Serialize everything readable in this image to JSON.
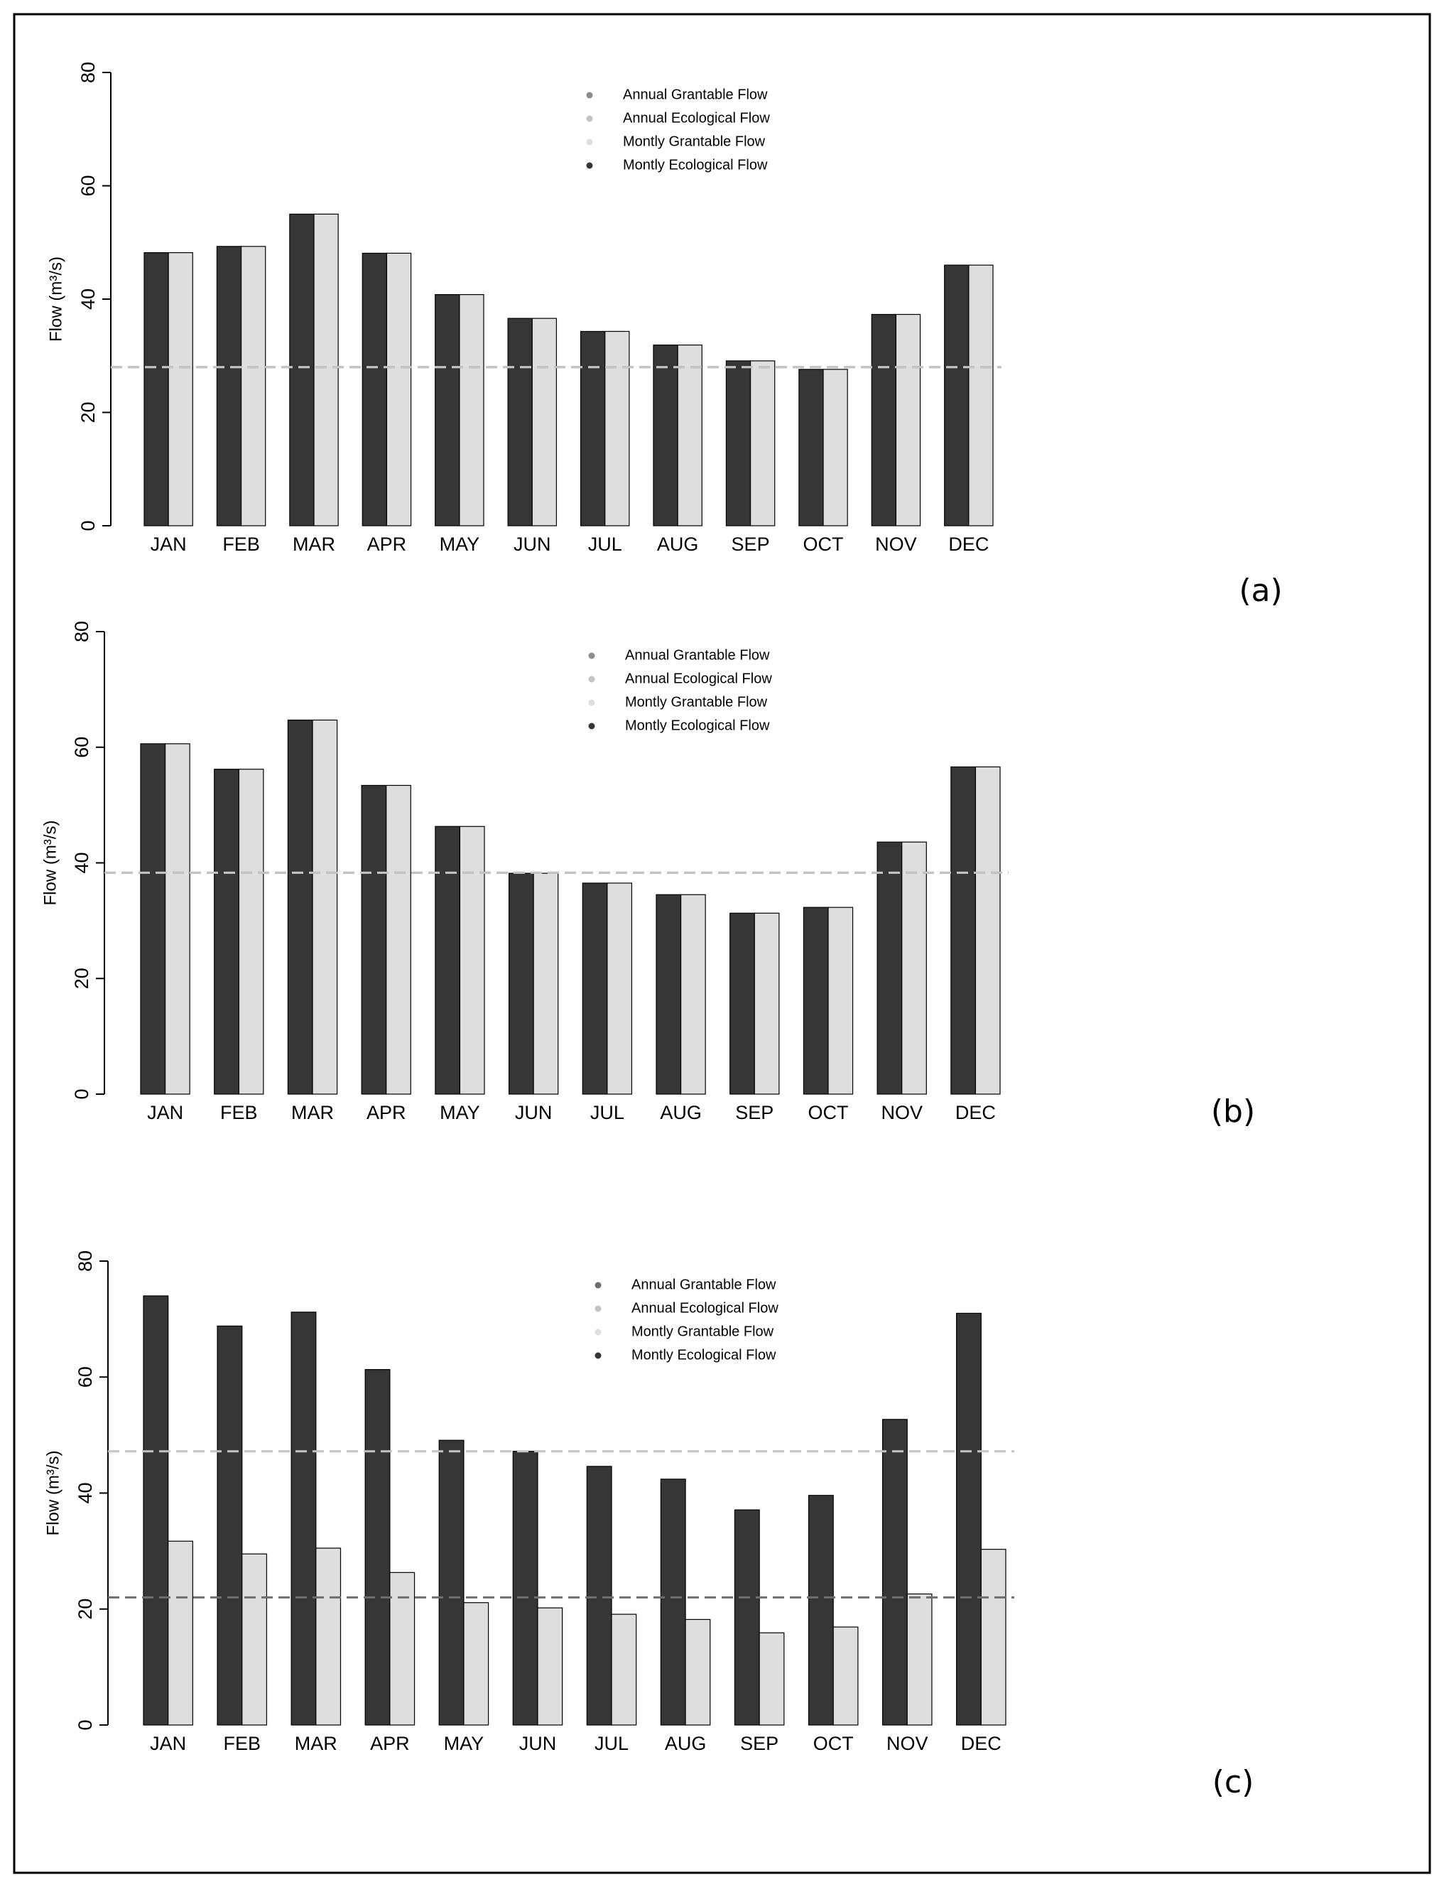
{
  "chart_data": [
    {
      "type": "bar",
      "label": "(a)",
      "y_label": "Flow (m³/s)",
      "categories": [
        "JAN",
        "FEB",
        "MAR",
        "APR",
        "MAY",
        "JUN",
        "JUL",
        "AUG",
        "SEP",
        "OCT",
        "NOV",
        "DEC"
      ],
      "ylim": [
        0,
        80
      ],
      "yticks": [
        0,
        20,
        40,
        60,
        80
      ],
      "series": [
        {
          "name": "Annual Grantable Flow",
          "color": "#8c8c8c",
          "kind": "hline",
          "value": 28
        },
        {
          "name": "Annual Ecological Flow",
          "color": "#c4c4c4",
          "kind": "hline",
          "value": 28
        },
        {
          "name": "Montly Grantable Flow",
          "color": "#dedede",
          "kind": "bar",
          "values": [
            48.2,
            49.3,
            55,
            48.1,
            40.8,
            36.6,
            34.3,
            31.9,
            29.1,
            27.6,
            37.3,
            46
          ]
        },
        {
          "name": "Montly Ecological Flow",
          "color": "#363636",
          "kind": "bar",
          "values": [
            48.2,
            49.3,
            55,
            48.1,
            40.8,
            36.6,
            34.3,
            31.9,
            29.1,
            27.6,
            37.3,
            46
          ]
        }
      ]
    },
    {
      "type": "bar",
      "label": "(b)",
      "y_label": "Flow (m³/s)",
      "categories": [
        "JAN",
        "FEB",
        "MAR",
        "APR",
        "MAY",
        "JUN",
        "JUL",
        "AUG",
        "SEP",
        "OCT",
        "NOV",
        "DEC"
      ],
      "ylim": [
        0,
        80
      ],
      "yticks": [
        0,
        20,
        40,
        60,
        80
      ],
      "series": [
        {
          "name": "Annual Grantable Flow",
          "color": "#8c8c8c",
          "kind": "hline",
          "value": 38.3
        },
        {
          "name": "Annual Ecological Flow",
          "color": "#c4c4c4",
          "kind": "hline",
          "value": 38.3
        },
        {
          "name": "Montly Grantable Flow",
          "color": "#dedede",
          "kind": "bar",
          "values": [
            60.6,
            56.2,
            64.7,
            53.4,
            46.3,
            38.2,
            36.5,
            34.5,
            31.3,
            32.3,
            43.6,
            56.6
          ]
        },
        {
          "name": "Montly Ecological Flow",
          "color": "#363636",
          "kind": "bar",
          "values": [
            60.6,
            56.2,
            64.7,
            53.4,
            46.3,
            38.2,
            36.5,
            34.5,
            31.3,
            32.3,
            43.6,
            56.6
          ]
        }
      ]
    },
    {
      "type": "bar",
      "label": "(c)",
      "y_label": "Flow (m³/s)",
      "categories": [
        "JAN",
        "FEB",
        "MAR",
        "APR",
        "MAY",
        "JUN",
        "JUL",
        "AUG",
        "SEP",
        "OCT",
        "NOV",
        "DEC"
      ],
      "ylim": [
        0,
        80
      ],
      "yticks": [
        0,
        20,
        40,
        60,
        80
      ],
      "series": [
        {
          "name": "Annual Grantable Flow",
          "color": "#6e6e6e",
          "kind": "hline",
          "value": 22
        },
        {
          "name": "Annual Ecological Flow",
          "color": "#c4c4c4",
          "kind": "hline",
          "value": 47.2
        },
        {
          "name": "Montly Grantable Flow",
          "color": "#dedede",
          "kind": "bar",
          "values": [
            31.7,
            29.5,
            30.5,
            26.3,
            21.1,
            20.2,
            19.1,
            18.2,
            15.9,
            16.9,
            22.6,
            30.3
          ]
        },
        {
          "name": "Montly Ecological Flow",
          "color": "#363636",
          "kind": "bar",
          "values": [
            74,
            68.8,
            71.2,
            61.3,
            49.1,
            47.2,
            44.6,
            42.4,
            37.1,
            39.6,
            52.7,
            71
          ]
        }
      ]
    }
  ]
}
